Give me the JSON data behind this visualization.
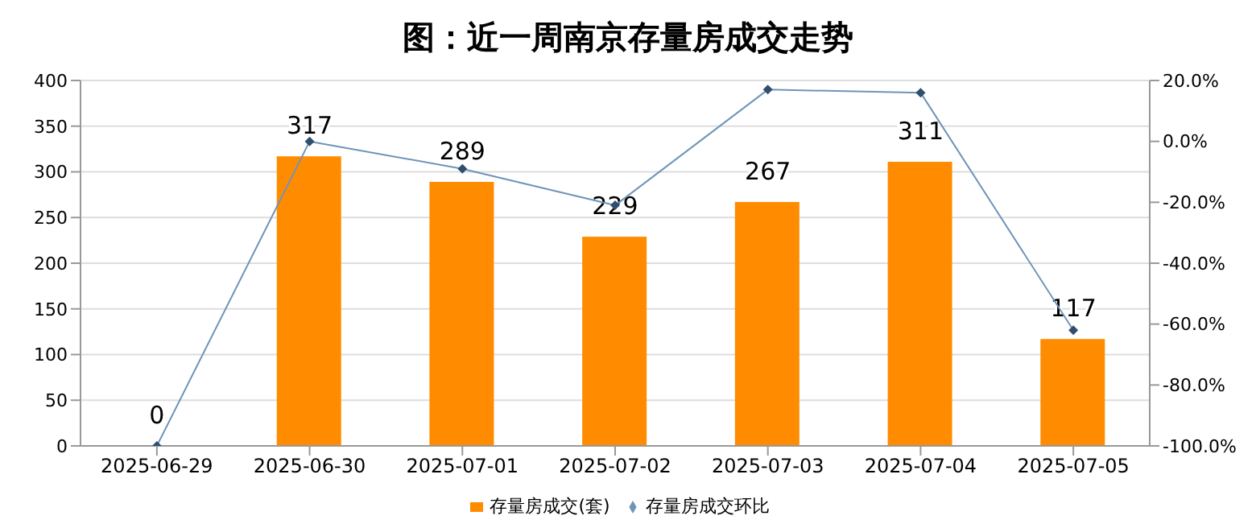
{
  "chart_data": {
    "type": "bar",
    "title": "图：近一周南京存量房成交走势",
    "categories": [
      "2025-06-29",
      "2025-06-30",
      "2025-07-01",
      "2025-07-02",
      "2025-07-03",
      "2025-07-04",
      "2025-07-05"
    ],
    "series": [
      {
        "name": "存量房成交(套)",
        "color": "#ff8c00",
        "values": [
          0,
          317,
          289,
          229,
          267,
          311,
          117
        ],
        "data_labels": true
      },
      {
        "name": "存量房成交环比",
        "type": "line",
        "axis": "y2",
        "color": "#6f94b8",
        "marker": "diamond",
        "values": [
          -100,
          0,
          -9,
          -21,
          17,
          16,
          -62
        ]
      }
    ],
    "ylim": [
      0,
      400
    ],
    "yticks": [
      0,
      50,
      100,
      150,
      200,
      250,
      300,
      350,
      400
    ],
    "y2lim": [
      -100,
      20
    ],
    "y2ticks": [
      {
        "value": -100,
        "label": "-100.0%"
      },
      {
        "value": -80,
        "label": "-80.0%"
      },
      {
        "value": -60,
        "label": "-60.0%"
      },
      {
        "value": -40,
        "label": "-40.0%"
      },
      {
        "value": -20,
        "label": "-20.0%"
      },
      {
        "value": 0,
        "label": "0.0%"
      },
      {
        "value": 20,
        "label": "20.0%"
      }
    ],
    "grid": "y",
    "legend": "bottom"
  }
}
